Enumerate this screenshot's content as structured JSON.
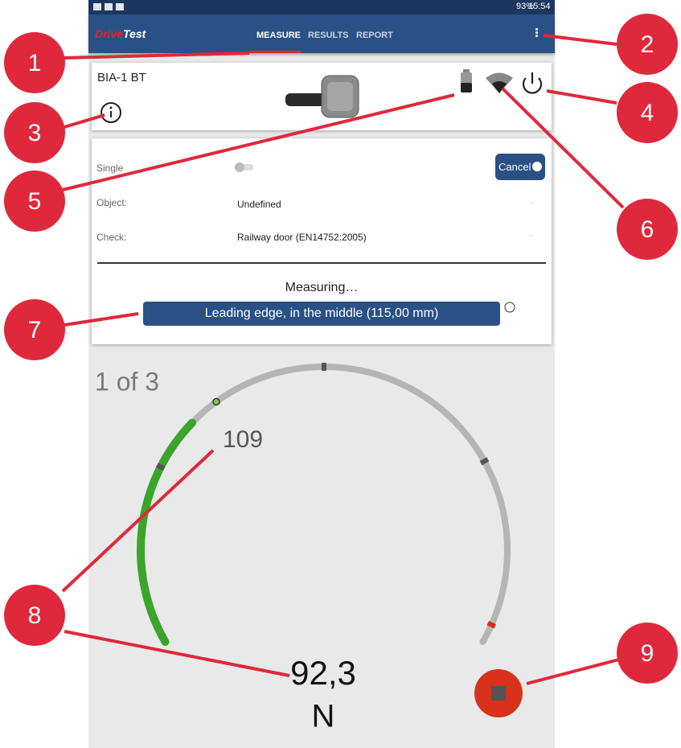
{
  "status_bar": {
    "battery": "93%",
    "time": "15:54"
  },
  "app_bar": {
    "logo_drive": "Drive",
    "logo_test": "Test",
    "tabs": [
      "MEASURE",
      "RESULTS",
      "REPORT"
    ]
  },
  "device": {
    "name": "BIA-1 BT"
  },
  "settings": {
    "mode": "Single",
    "cancel": "Cancel",
    "object_label": "Object:",
    "object_value": "Undefined",
    "check_label": "Check:",
    "check_value": "Railway door (EN14752:2005)"
  },
  "measurement": {
    "status": "Measuring…",
    "position": "Leading edge, in the middle (115,00 mm)",
    "progress": "1 of 3",
    "peak": "109",
    "value": "92,3",
    "unit": "N"
  },
  "callouts": [
    "1",
    "2",
    "3",
    "4",
    "5",
    "6",
    "7",
    "8",
    "9"
  ]
}
